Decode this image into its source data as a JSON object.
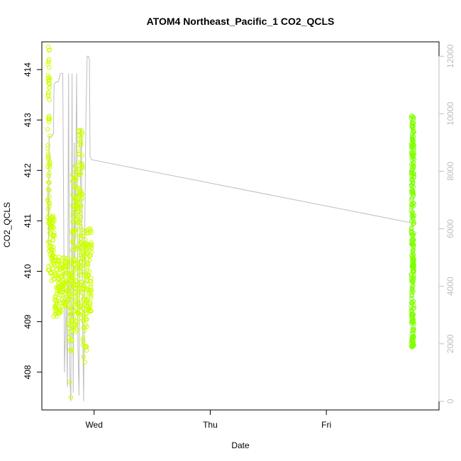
{
  "chart_data": {
    "type": "scatter",
    "title": "ATOM4 Northeast_Pacific_1 CO2_QCLS",
    "xlabel": "Date",
    "ylabel": "CO2_QCLS",
    "x_ticks": [
      "Wed",
      "Thu",
      "Fri"
    ],
    "x_tick_values": [
      0,
      1,
      2
    ],
    "x_unit": "days from Wednesday 00:00",
    "xlim": [
      -0.45,
      2.97
    ],
    "ylim": [
      407.25,
      414.55
    ],
    "y_ticks": [
      408,
      409,
      410,
      411,
      412,
      413,
      414
    ],
    "y2lim": [
      -300,
      12500
    ],
    "y2_ticks": [
      0,
      2000,
      4000,
      6000,
      8000,
      10000,
      12000
    ],
    "grid": false,
    "legend": "none",
    "colors": {
      "early_points": "#ccff00",
      "late_points": "#7fff00",
      "altitude_line": "#bebebe",
      "right_axis": "#bebebe"
    },
    "series": [
      {
        "kind": "points",
        "color": "#ccff00",
        "segments": [
          {
            "x0": -0.4,
            "x1": -0.38,
            "ylo": 410.0,
            "yhi": 414.4,
            "n": 70
          },
          {
            "x0": -0.38,
            "x1": -0.34,
            "ylo": 409.8,
            "yhi": 411.1,
            "n": 60
          },
          {
            "x0": -0.34,
            "x1": -0.28,
            "ylo": 409.1,
            "yhi": 410.3,
            "n": 70
          },
          {
            "x0": -0.28,
            "x1": -0.22,
            "ylo": 409.3,
            "yhi": 410.3,
            "n": 60
          },
          {
            "x0": -0.22,
            "x1": -0.19,
            "ylo": 408.4,
            "yhi": 410.2,
            "n": 40
          },
          {
            "x0": -0.19,
            "x1": -0.14,
            "ylo": 408.8,
            "yhi": 412.2,
            "n": 110
          },
          {
            "x0": -0.14,
            "x1": -0.1,
            "ylo": 409.0,
            "yhi": 412.9,
            "n": 90
          },
          {
            "x0": -0.1,
            "x1": -0.06,
            "ylo": 408.3,
            "yhi": 410.9,
            "n": 70
          },
          {
            "x0": -0.06,
            "x1": -0.02,
            "ylo": 409.2,
            "yhi": 410.9,
            "n": 60
          }
        ],
        "points": [
          {
            "x": -0.35,
            "y": 409.1
          },
          {
            "x": -0.21,
            "y": 407.8
          },
          {
            "x": -0.2,
            "y": 407.5
          },
          {
            "x": -0.12,
            "y": 412.7
          },
          {
            "x": -0.11,
            "y": 412.8
          },
          {
            "x": -0.08,
            "y": 408.2
          },
          {
            "x": -0.395,
            "y": 414.45
          },
          {
            "x": -0.39,
            "y": 414.2
          },
          {
            "x": -0.385,
            "y": 413.4
          }
        ]
      },
      {
        "kind": "points",
        "color": "#7fff00",
        "segments": [
          {
            "x0": 2.73,
            "x1": 2.755,
            "ylo": 408.5,
            "yhi": 413.1,
            "n": 260
          }
        ],
        "points": [
          {
            "x": 2.745,
            "y": 413.05
          },
          {
            "x": 2.74,
            "y": 408.5
          },
          {
            "x": 2.75,
            "y": 408.55
          }
        ]
      },
      {
        "kind": "line",
        "axis": "right",
        "color": "#bebebe",
        "x": [
          -0.4,
          -0.39,
          -0.388,
          -0.37,
          -0.35,
          -0.345,
          -0.33,
          -0.31,
          -0.29,
          -0.27,
          -0.26,
          -0.255,
          -0.24,
          -0.23,
          -0.22,
          -0.21,
          -0.2,
          -0.19,
          -0.18,
          -0.17,
          -0.165,
          -0.15,
          -0.14,
          -0.13,
          -0.12,
          -0.11,
          -0.1,
          -0.09,
          -0.08,
          -0.07,
          -0.06,
          -0.05,
          -0.04,
          -0.035,
          -0.02,
          2.74,
          2.745
        ],
        "y": [
          7500,
          5500,
          9200,
          9200,
          9300,
          11000,
          11100,
          11100,
          11400,
          11400,
          5200,
          1000,
          3500,
          500,
          11400,
          1000,
          0,
          11400,
          300,
          9000,
          5000,
          11400,
          2000,
          200,
          7000,
          9500,
          3000,
          0,
          6000,
          10000,
          12000,
          12000,
          11900,
          8500,
          8400,
          6200,
          6150
        ]
      }
    ]
  }
}
